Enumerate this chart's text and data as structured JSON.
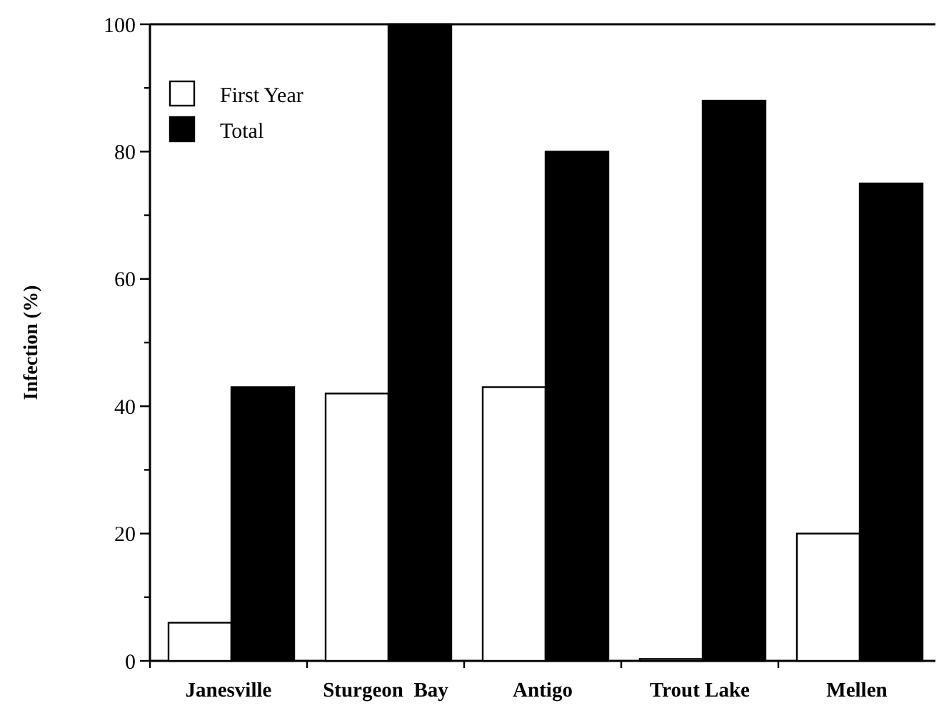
{
  "chart_data": {
    "type": "bar",
    "ylabel": "Infection (%)",
    "categories": [
      "Janesville",
      "Sturgeon  Bay",
      "Antigo",
      "Trout Lake",
      "Mellen"
    ],
    "series": [
      {
        "name": "First Year",
        "color": "#ffffff",
        "values": [
          6,
          42,
          43,
          0.3,
          20
        ]
      },
      {
        "name": "Total",
        "color": "#000000",
        "values": [
          43,
          100,
          80,
          88,
          75
        ]
      }
    ],
    "ylim": [
      0,
      100
    ],
    "yticks": [
      0,
      {
        "value": 10,
        "label": null
      },
      20,
      {
        "value": 30,
        "label": null
      },
      40,
      {
        "value": 50,
        "label": null
      },
      60,
      {
        "value": 70,
        "label": null
      },
      80,
      {
        "value": 90,
        "label": null
      },
      100
    ],
    "legend": "top left",
    "grid": false
  }
}
